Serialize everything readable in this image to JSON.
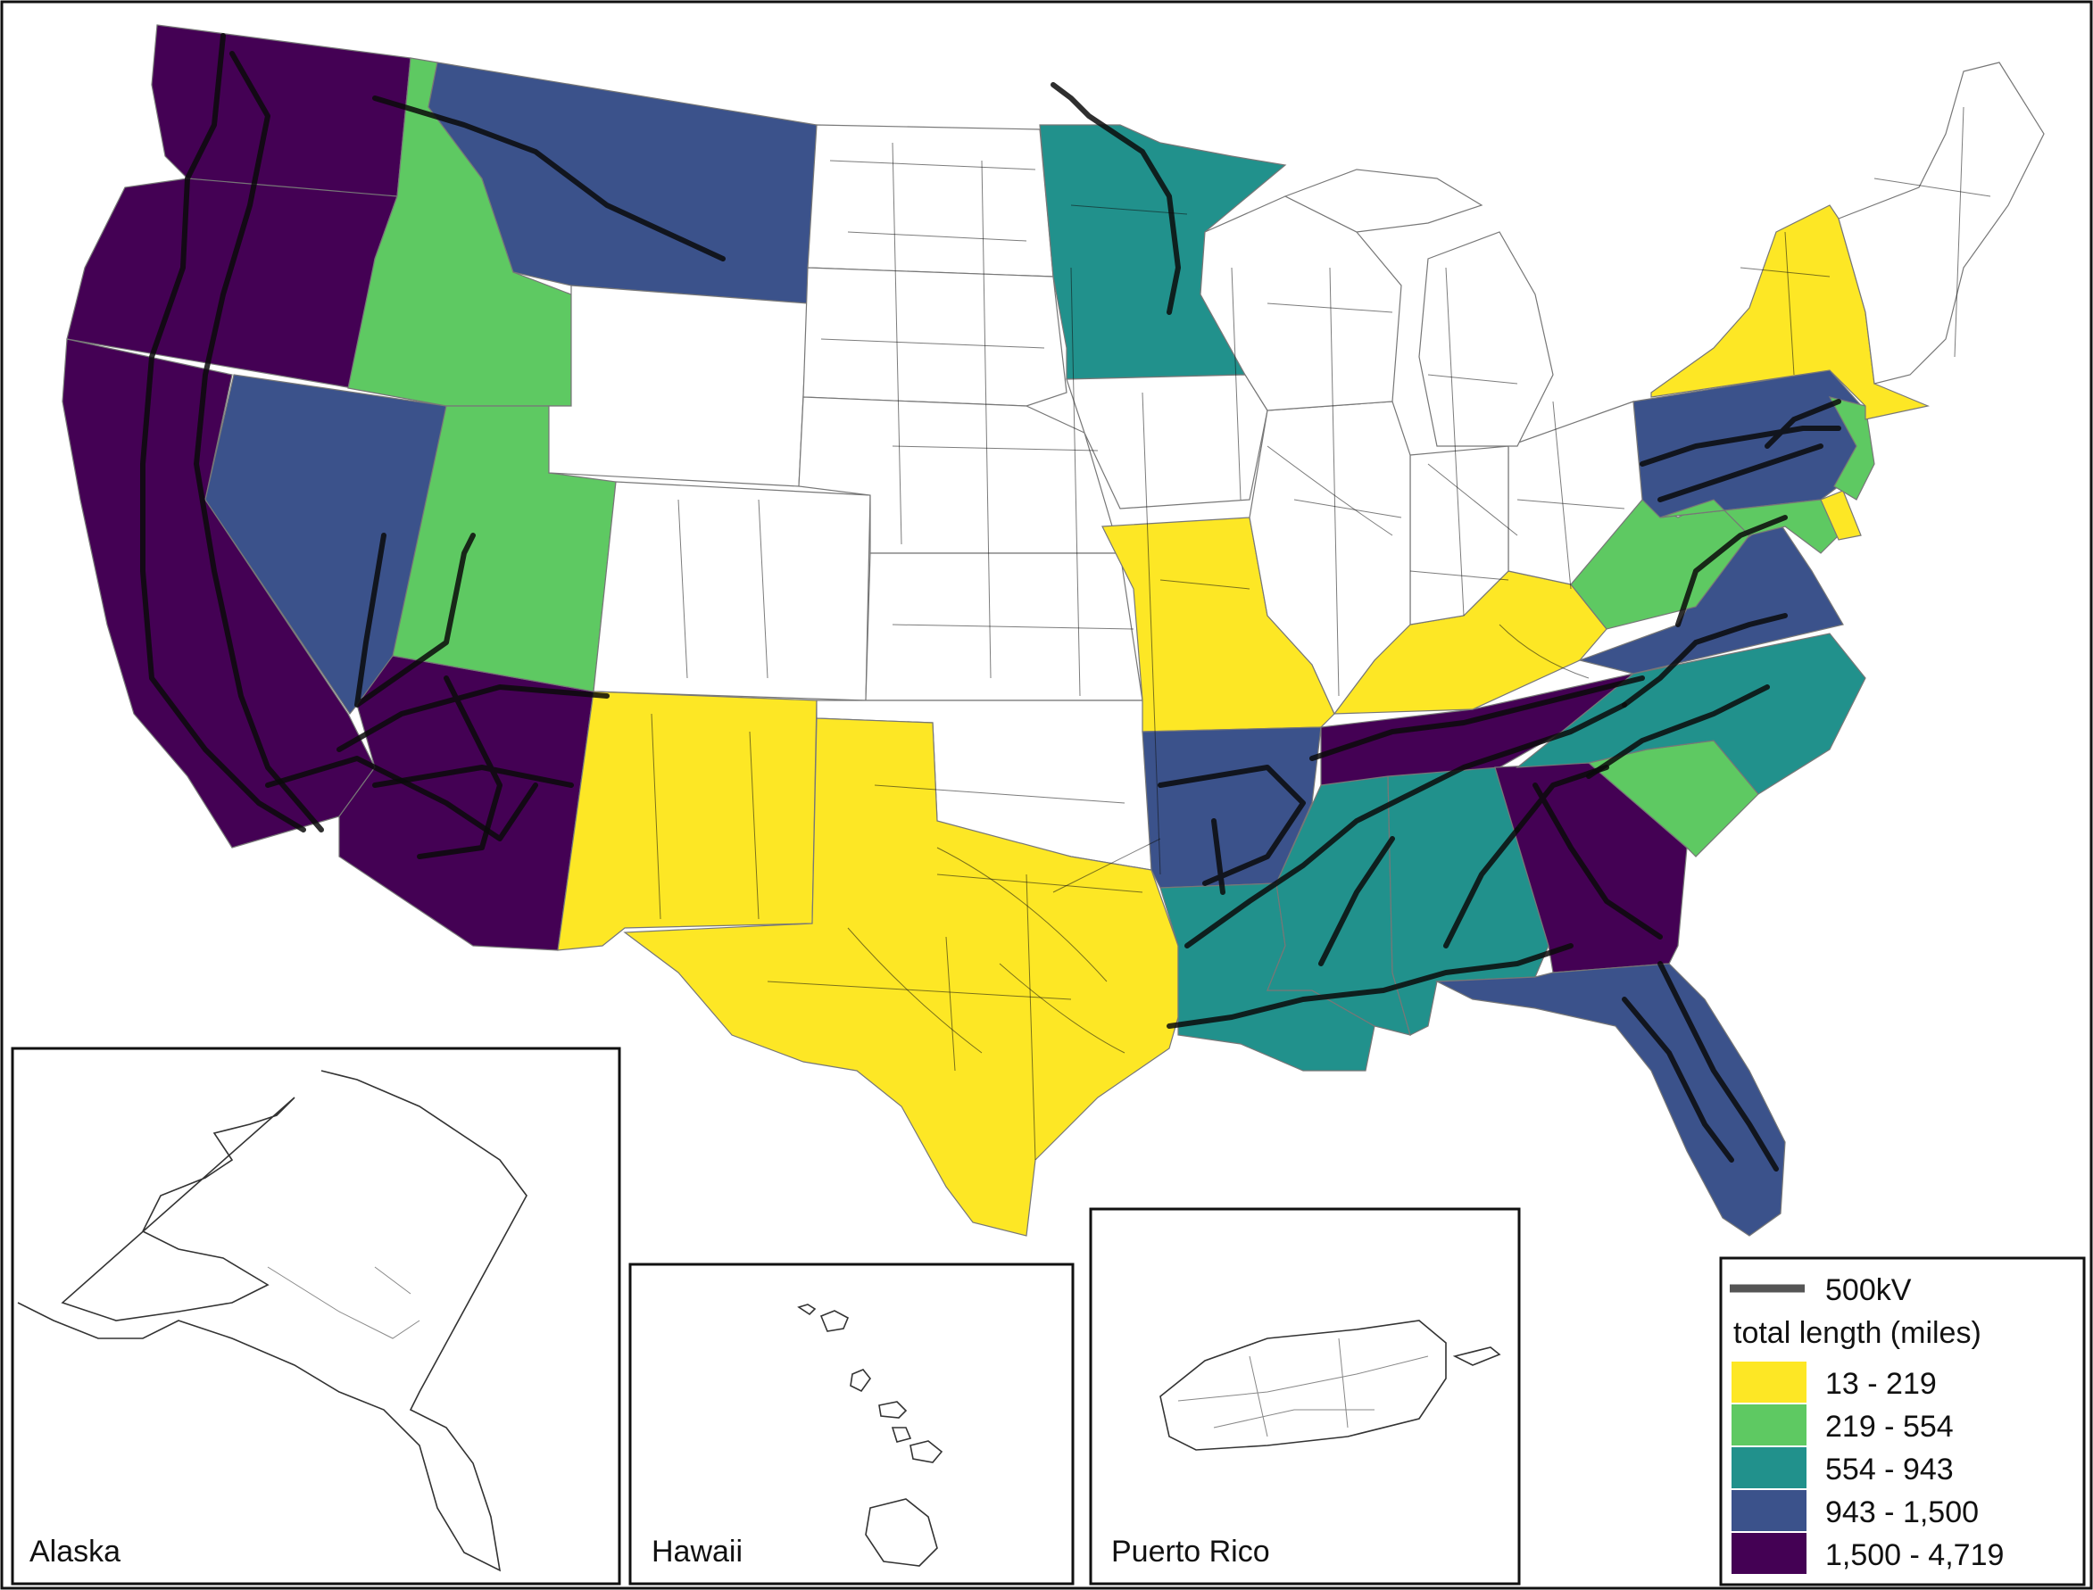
{
  "insets": {
    "alaska": "Alaska",
    "hawaii": "Hawaii",
    "puerto_rico": "Puerto Rico"
  },
  "legend": {
    "line_label": "500kV",
    "title": "total length (miles)",
    "bins": [
      {
        "label": "13 - 219",
        "color": "#fde725"
      },
      {
        "label": "219 - 554",
        "color": "#5ec962"
      },
      {
        "label": "554 - 943",
        "color": "#21918c"
      },
      {
        "label": "943 - 1,500",
        "color": "#3b528b"
      },
      {
        "label": "1,500 - 4,719",
        "color": "#440154"
      }
    ]
  },
  "colors": {
    "no_500kv": "#ffffff",
    "line_500kv": "#111111",
    "transmission_lines": "#000000"
  },
  "state_bins": {
    "Washington": "1,500 - 4,719",
    "Oregon": "1,500 - 4,719",
    "California": "1,500 - 4,719",
    "Arizona": "1,500 - 4,719",
    "Tennessee": "1,500 - 4,719",
    "Georgia": "1,500 - 4,719",
    "Montana": "943 - 1,500",
    "Nevada": "943 - 1,500",
    "Arkansas": "943 - 1,500",
    "Virginia": "943 - 1,500",
    "Pennsylvania": "943 - 1,500",
    "Florida": "943 - 1,500",
    "Minnesota": "554 - 943",
    "Louisiana": "554 - 943",
    "Mississippi": "554 - 943",
    "Alabama": "554 - 943",
    "North Carolina": "554 - 943",
    "Idaho": "219 - 554",
    "Utah": "219 - 554",
    "West Virginia": "219 - 554",
    "South Carolina": "219 - 554",
    "Maryland": "219 - 554",
    "New Jersey": "219 - 554",
    "New Mexico": "13 - 219",
    "Texas": "13 - 219",
    "Missouri": "13 - 219",
    "Kentucky": "13 - 219",
    "New York": "13 - 219",
    "Delaware": "13 - 219"
  }
}
